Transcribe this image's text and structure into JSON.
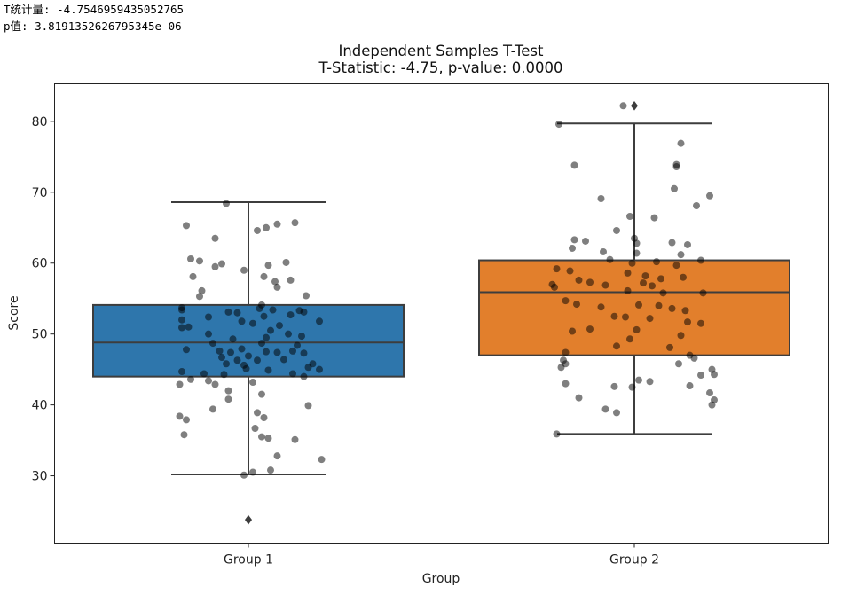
{
  "console": {
    "line1": "T统计量: -4.7546959435052765",
    "line2": "p值: 3.8191352626795345e-06"
  },
  "chart_data": {
    "type": "box",
    "title_line1": "Independent Samples T-Test",
    "title_line2": "T-Statistic: -4.75, p-value: 0.0000",
    "xlabel": "Group",
    "ylabel": "Score",
    "ylim": [
      20.5,
      85.3
    ],
    "yticks": [
      30,
      40,
      50,
      60,
      70,
      80
    ],
    "categories": [
      "Group 1",
      "Group 2"
    ],
    "colors": {
      "Group 1": "#2e76ac",
      "Group 2": "#e27f2c",
      "line": "#3d3d3d",
      "point": "#000000"
    },
    "boxes": [
      {
        "name": "Group 1",
        "q1": 44.0,
        "median": 48.8,
        "q3": 54.1,
        "whisker_low": 30.2,
        "whisker_high": 68.6,
        "outliers": [
          23.8
        ]
      },
      {
        "name": "Group 2",
        "q1": 47.0,
        "median": 55.9,
        "q3": 60.4,
        "whisker_low": 35.9,
        "whisker_high": 79.7,
        "outliers": [
          82.2
        ]
      }
    ],
    "points": [
      {
        "group": 0,
        "jitter": -0.1,
        "y": 68.4
      },
      {
        "group": 0,
        "jitter": -0.28,
        "y": 65.3
      },
      {
        "group": 0,
        "jitter": -0.15,
        "y": 63.5
      },
      {
        "group": 0,
        "jitter": 0.04,
        "y": 64.6
      },
      {
        "group": 0,
        "jitter": 0.08,
        "y": 65.0
      },
      {
        "group": 0,
        "jitter": 0.13,
        "y": 65.5
      },
      {
        "group": 0,
        "jitter": 0.21,
        "y": 65.7
      },
      {
        "group": 0,
        "jitter": -0.26,
        "y": 60.6
      },
      {
        "group": 0,
        "jitter": -0.22,
        "y": 60.3
      },
      {
        "group": 0,
        "jitter": -0.15,
        "y": 59.5
      },
      {
        "group": 0,
        "jitter": -0.12,
        "y": 59.9
      },
      {
        "group": 0,
        "jitter": 0.09,
        "y": 59.7
      },
      {
        "group": 0,
        "jitter": 0.17,
        "y": 60.1
      },
      {
        "group": 0,
        "jitter": -0.25,
        "y": 58.1
      },
      {
        "group": 0,
        "jitter": -0.02,
        "y": 59.0
      },
      {
        "group": 0,
        "jitter": 0.07,
        "y": 58.1
      },
      {
        "group": 0,
        "jitter": 0.12,
        "y": 57.4
      },
      {
        "group": 0,
        "jitter": 0.19,
        "y": 57.6
      },
      {
        "group": 0,
        "jitter": -0.21,
        "y": 56.1
      },
      {
        "group": 0,
        "jitter": 0.13,
        "y": 56.6
      },
      {
        "group": 0,
        "jitter": 0.26,
        "y": 55.4
      },
      {
        "group": 0,
        "jitter": -0.22,
        "y": 55.3
      },
      {
        "group": 0,
        "jitter": 0.06,
        "y": 54.1
      },
      {
        "group": 0,
        "jitter": -0.3,
        "y": 53.7
      },
      {
        "group": 0,
        "jitter": -0.3,
        "y": 53.4
      },
      {
        "group": 0,
        "jitter": -0.09,
        "y": 53.1
      },
      {
        "group": 0,
        "jitter": -0.05,
        "y": 53.0
      },
      {
        "group": 0,
        "jitter": 0.05,
        "y": 53.6
      },
      {
        "group": 0,
        "jitter": 0.11,
        "y": 53.4
      },
      {
        "group": 0,
        "jitter": 0.23,
        "y": 53.3
      },
      {
        "group": 0,
        "jitter": 0.25,
        "y": 53.1
      },
      {
        "group": 0,
        "jitter": -0.3,
        "y": 52.0
      },
      {
        "group": 0,
        "jitter": -0.18,
        "y": 52.4
      },
      {
        "group": 0,
        "jitter": 0.07,
        "y": 52.5
      },
      {
        "group": 0,
        "jitter": 0.19,
        "y": 52.7
      },
      {
        "group": 0,
        "jitter": -0.03,
        "y": 51.8
      },
      {
        "group": 0,
        "jitter": 0.02,
        "y": 51.5
      },
      {
        "group": 0,
        "jitter": 0.14,
        "y": 51.2
      },
      {
        "group": 0,
        "jitter": 0.32,
        "y": 51.8
      },
      {
        "group": 0,
        "jitter": -0.27,
        "y": 51.0
      },
      {
        "group": 0,
        "jitter": -0.3,
        "y": 50.9
      },
      {
        "group": 0,
        "jitter": 0.1,
        "y": 50.5
      },
      {
        "group": 0,
        "jitter": -0.18,
        "y": 50.0
      },
      {
        "group": 0,
        "jitter": -0.07,
        "y": 49.3
      },
      {
        "group": 0,
        "jitter": 0.08,
        "y": 49.5
      },
      {
        "group": 0,
        "jitter": 0.18,
        "y": 50.0
      },
      {
        "group": 0,
        "jitter": 0.24,
        "y": 49.7
      },
      {
        "group": 0,
        "jitter": -0.16,
        "y": 48.7
      },
      {
        "group": 0,
        "jitter": 0.06,
        "y": 48.7
      },
      {
        "group": 0,
        "jitter": 0.22,
        "y": 48.4
      },
      {
        "group": 0,
        "jitter": -0.28,
        "y": 47.8
      },
      {
        "group": 0,
        "jitter": -0.13,
        "y": 47.6
      },
      {
        "group": 0,
        "jitter": -0.08,
        "y": 47.4
      },
      {
        "group": 0,
        "jitter": -0.03,
        "y": 47.9
      },
      {
        "group": 0,
        "jitter": 0.08,
        "y": 47.5
      },
      {
        "group": 0,
        "jitter": 0.13,
        "y": 47.4
      },
      {
        "group": 0,
        "jitter": 0.2,
        "y": 47.6
      },
      {
        "group": 0,
        "jitter": 0.25,
        "y": 47.3
      },
      {
        "group": 0,
        "jitter": -0.12,
        "y": 46.7
      },
      {
        "group": 0,
        "jitter": -0.05,
        "y": 46.3
      },
      {
        "group": 0,
        "jitter": 0.0,
        "y": 46.9
      },
      {
        "group": 0,
        "jitter": 0.04,
        "y": 46.3
      },
      {
        "group": 0,
        "jitter": 0.16,
        "y": 46.4
      },
      {
        "group": 0,
        "jitter": -0.1,
        "y": 45.8
      },
      {
        "group": 0,
        "jitter": -0.02,
        "y": 45.6
      },
      {
        "group": 0,
        "jitter": 0.29,
        "y": 45.8
      },
      {
        "group": 0,
        "jitter": 0.27,
        "y": 45.3
      },
      {
        "group": 0,
        "jitter": 0.32,
        "y": 45.0
      },
      {
        "group": 0,
        "jitter": -0.01,
        "y": 45.1
      },
      {
        "group": 0,
        "jitter": 0.09,
        "y": 44.9
      },
      {
        "group": 0,
        "jitter": 0.2,
        "y": 44.4
      },
      {
        "group": 0,
        "jitter": 0.25,
        "y": 44.0
      },
      {
        "group": 0,
        "jitter": -0.3,
        "y": 44.7
      },
      {
        "group": 0,
        "jitter": -0.2,
        "y": 44.4
      },
      {
        "group": 0,
        "jitter": -0.11,
        "y": 44.3
      },
      {
        "group": 0,
        "jitter": -0.26,
        "y": 43.6
      },
      {
        "group": 0,
        "jitter": -0.18,
        "y": 43.4
      },
      {
        "group": 0,
        "jitter": -0.31,
        "y": 42.9
      },
      {
        "group": 0,
        "jitter": -0.15,
        "y": 42.9
      },
      {
        "group": 0,
        "jitter": 0.02,
        "y": 43.2
      },
      {
        "group": 0,
        "jitter": -0.09,
        "y": 42.0
      },
      {
        "group": 0,
        "jitter": 0.06,
        "y": 41.5
      },
      {
        "group": 0,
        "jitter": -0.09,
        "y": 40.8
      },
      {
        "group": 0,
        "jitter": 0.27,
        "y": 39.9
      },
      {
        "group": 0,
        "jitter": -0.16,
        "y": 39.4
      },
      {
        "group": 0,
        "jitter": 0.04,
        "y": 38.9
      },
      {
        "group": 0,
        "jitter": 0.07,
        "y": 38.2
      },
      {
        "group": 0,
        "jitter": -0.31,
        "y": 38.4
      },
      {
        "group": 0,
        "jitter": -0.28,
        "y": 37.9
      },
      {
        "group": 0,
        "jitter": 0.03,
        "y": 36.7
      },
      {
        "group": 0,
        "jitter": 0.06,
        "y": 35.5
      },
      {
        "group": 0,
        "jitter": 0.09,
        "y": 35.3
      },
      {
        "group": 0,
        "jitter": 0.21,
        "y": 35.1
      },
      {
        "group": 0,
        "jitter": -0.29,
        "y": 35.8
      },
      {
        "group": 0,
        "jitter": 0.13,
        "y": 32.8
      },
      {
        "group": 0,
        "jitter": 0.33,
        "y": 32.3
      },
      {
        "group": 0,
        "jitter": 0.1,
        "y": 30.8
      },
      {
        "group": 0,
        "jitter": -0.02,
        "y": 30.1
      },
      {
        "group": 0,
        "jitter": 0.02,
        "y": 30.5
      },
      {
        "group": 1,
        "jitter": -0.05,
        "y": 82.2
      },
      {
        "group": 1,
        "jitter": -0.34,
        "y": 79.6
      },
      {
        "group": 1,
        "jitter": 0.21,
        "y": 76.9
      },
      {
        "group": 1,
        "jitter": -0.27,
        "y": 73.8
      },
      {
        "group": 1,
        "jitter": 0.19,
        "y": 73.9
      },
      {
        "group": 1,
        "jitter": 0.19,
        "y": 73.6
      },
      {
        "group": 1,
        "jitter": 0.18,
        "y": 70.5
      },
      {
        "group": 1,
        "jitter": 0.34,
        "y": 69.5
      },
      {
        "group": 1,
        "jitter": -0.15,
        "y": 69.1
      },
      {
        "group": 1,
        "jitter": 0.28,
        "y": 68.1
      },
      {
        "group": 1,
        "jitter": -0.02,
        "y": 66.6
      },
      {
        "group": 1,
        "jitter": 0.09,
        "y": 66.4
      },
      {
        "group": 1,
        "jitter": -0.08,
        "y": 64.6
      },
      {
        "group": 1,
        "jitter": 0.0,
        "y": 63.5
      },
      {
        "group": 1,
        "jitter": -0.27,
        "y": 63.3
      },
      {
        "group": 1,
        "jitter": -0.22,
        "y": 63.1
      },
      {
        "group": 1,
        "jitter": -0.28,
        "y": 62.1
      },
      {
        "group": 1,
        "jitter": 0.17,
        "y": 62.9
      },
      {
        "group": 1,
        "jitter": 0.01,
        "y": 62.8
      },
      {
        "group": 1,
        "jitter": 0.24,
        "y": 62.6
      },
      {
        "group": 1,
        "jitter": -0.14,
        "y": 61.6
      },
      {
        "group": 1,
        "jitter": 0.01,
        "y": 61.4
      },
      {
        "group": 1,
        "jitter": 0.21,
        "y": 61.2
      },
      {
        "group": 1,
        "jitter": -0.11,
        "y": 60.5
      },
      {
        "group": 1,
        "jitter": -0.01,
        "y": 60.0
      },
      {
        "group": 1,
        "jitter": 0.1,
        "y": 60.2
      },
      {
        "group": 1,
        "jitter": 0.19,
        "y": 59.7
      },
      {
        "group": 1,
        "jitter": 0.3,
        "y": 60.4
      },
      {
        "group": 1,
        "jitter": -0.35,
        "y": 59.2
      },
      {
        "group": 1,
        "jitter": -0.29,
        "y": 58.9
      },
      {
        "group": 1,
        "jitter": -0.03,
        "y": 58.6
      },
      {
        "group": 1,
        "jitter": 0.05,
        "y": 58.2
      },
      {
        "group": 1,
        "jitter": 0.12,
        "y": 57.8
      },
      {
        "group": 1,
        "jitter": 0.22,
        "y": 58.0
      },
      {
        "group": 1,
        "jitter": -0.25,
        "y": 57.6
      },
      {
        "group": 1,
        "jitter": -0.2,
        "y": 57.3
      },
      {
        "group": 1,
        "jitter": -0.37,
        "y": 57.0
      },
      {
        "group": 1,
        "jitter": -0.36,
        "y": 56.6
      },
      {
        "group": 1,
        "jitter": -0.13,
        "y": 56.9
      },
      {
        "group": 1,
        "jitter": 0.04,
        "y": 57.2
      },
      {
        "group": 1,
        "jitter": 0.08,
        "y": 56.8
      },
      {
        "group": 1,
        "jitter": -0.03,
        "y": 56.1
      },
      {
        "group": 1,
        "jitter": 0.13,
        "y": 55.8
      },
      {
        "group": 1,
        "jitter": 0.31,
        "y": 55.8
      },
      {
        "group": 1,
        "jitter": -0.31,
        "y": 54.7
      },
      {
        "group": 1,
        "jitter": -0.26,
        "y": 54.2
      },
      {
        "group": 1,
        "jitter": -0.15,
        "y": 53.8
      },
      {
        "group": 1,
        "jitter": 0.02,
        "y": 54.1
      },
      {
        "group": 1,
        "jitter": 0.11,
        "y": 54.0
      },
      {
        "group": 1,
        "jitter": 0.17,
        "y": 53.6
      },
      {
        "group": 1,
        "jitter": 0.23,
        "y": 53.3
      },
      {
        "group": 1,
        "jitter": -0.09,
        "y": 52.5
      },
      {
        "group": 1,
        "jitter": -0.04,
        "y": 52.4
      },
      {
        "group": 1,
        "jitter": 0.07,
        "y": 52.2
      },
      {
        "group": 1,
        "jitter": 0.24,
        "y": 51.7
      },
      {
        "group": 1,
        "jitter": 0.3,
        "y": 51.5
      },
      {
        "group": 1,
        "jitter": -0.2,
        "y": 50.7
      },
      {
        "group": 1,
        "jitter": -0.28,
        "y": 50.4
      },
      {
        "group": 1,
        "jitter": 0.01,
        "y": 50.6
      },
      {
        "group": 1,
        "jitter": 0.21,
        "y": 49.8
      },
      {
        "group": 1,
        "jitter": -0.02,
        "y": 49.3
      },
      {
        "group": 1,
        "jitter": -0.08,
        "y": 48.3
      },
      {
        "group": 1,
        "jitter": 0.16,
        "y": 48.1
      },
      {
        "group": 1,
        "jitter": -0.31,
        "y": 47.4
      },
      {
        "group": 1,
        "jitter": 0.25,
        "y": 47.0
      },
      {
        "group": 1,
        "jitter": 0.27,
        "y": 46.6
      },
      {
        "group": 1,
        "jitter": -0.32,
        "y": 46.3
      },
      {
        "group": 1,
        "jitter": -0.31,
        "y": 45.8
      },
      {
        "group": 1,
        "jitter": -0.33,
        "y": 45.3
      },
      {
        "group": 1,
        "jitter": 0.2,
        "y": 45.8
      },
      {
        "group": 1,
        "jitter": 0.35,
        "y": 45.0
      },
      {
        "group": 1,
        "jitter": 0.3,
        "y": 44.2
      },
      {
        "group": 1,
        "jitter": 0.36,
        "y": 44.3
      },
      {
        "group": 1,
        "jitter": 0.02,
        "y": 43.5
      },
      {
        "group": 1,
        "jitter": 0.07,
        "y": 43.3
      },
      {
        "group": 1,
        "jitter": -0.31,
        "y": 43.0
      },
      {
        "group": 1,
        "jitter": -0.09,
        "y": 42.6
      },
      {
        "group": 1,
        "jitter": -0.01,
        "y": 42.5
      },
      {
        "group": 1,
        "jitter": 0.25,
        "y": 42.7
      },
      {
        "group": 1,
        "jitter": 0.34,
        "y": 41.7
      },
      {
        "group": 1,
        "jitter": -0.25,
        "y": 41.0
      },
      {
        "group": 1,
        "jitter": 0.36,
        "y": 40.7
      },
      {
        "group": 1,
        "jitter": 0.35,
        "y": 40.0
      },
      {
        "group": 1,
        "jitter": -0.13,
        "y": 39.4
      },
      {
        "group": 1,
        "jitter": -0.08,
        "y": 38.9
      },
      {
        "group": 1,
        "jitter": -0.35,
        "y": 35.9
      }
    ]
  }
}
